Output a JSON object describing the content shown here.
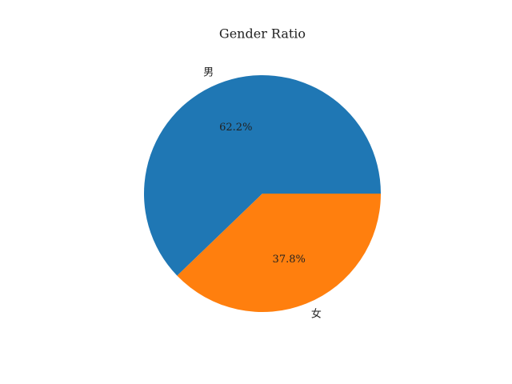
{
  "chart_data": {
    "type": "pie",
    "title": "Gender Ratio",
    "categories": [
      "男",
      "女"
    ],
    "values": [
      62.2,
      37.8
    ],
    "value_labels": [
      "62.2%",
      "37.8%"
    ],
    "colors": [
      "#1f77b4",
      "#ff7f0e"
    ]
  }
}
